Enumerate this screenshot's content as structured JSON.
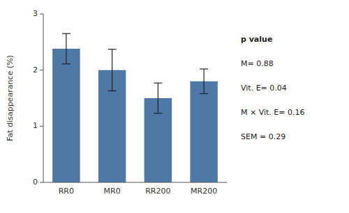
{
  "chart_data": {
    "type": "bar",
    "categories": [
      "RR0",
      "MR0",
      "RR200",
      "MR200"
    ],
    "values": [
      2.38,
      2.0,
      1.5,
      1.8
    ],
    "errors": [
      0.27,
      0.37,
      0.27,
      0.22
    ],
    "ylabel": "Fat disappearance (%)",
    "ylim": [
      0,
      3
    ],
    "yticks": [
      0,
      1,
      2,
      3
    ],
    "grid": false,
    "annotations": [
      "p value",
      "M= 0.88",
      "Vit. E= 0.04",
      "M × Vit. E= 0.16",
      "SEM = 0.29"
    ]
  }
}
